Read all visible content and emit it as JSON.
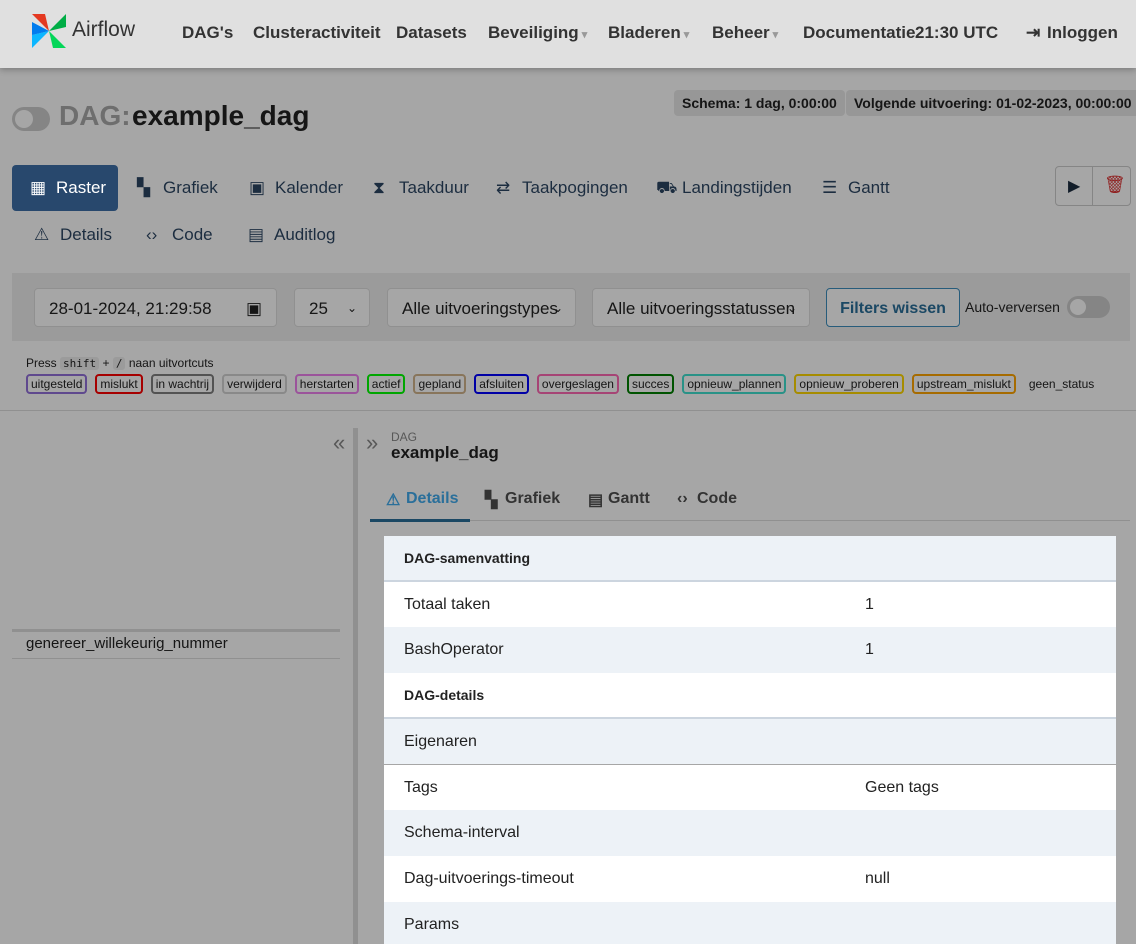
{
  "nav": {
    "brand": "Airflow",
    "items": [
      "DAG's",
      "Clusteractiviteit",
      "Datasets",
      "Beveiliging",
      "Bladeren",
      "Beheer",
      "Documentatie"
    ],
    "time": "21:30 UTC",
    "login": "Inloggen"
  },
  "header": {
    "prefix": "DAG:",
    "dag_id": "example_dag",
    "schedule": "Schema: 1 dag, 0:00:00",
    "next_run": "Volgende uitvoering: 01-02-2023, 00:00:00"
  },
  "tabs": [
    "Raster",
    "Grafiek",
    "Kalender",
    "Taakduur",
    "Taakpogingen",
    "Landingstijden",
    "Gantt",
    "Details",
    "Code",
    "Auditlog"
  ],
  "filters": {
    "date": "28-01-2024, 21:29:58",
    "count": "25",
    "run_type": "Alle uitvoeringstypes",
    "run_state": "Alle uitvoeringsstatussen",
    "clear": "Filters wissen",
    "auto_refresh": "Auto-verversen"
  },
  "shortcuts": {
    "press": "Press",
    "key1": "shift",
    "plus": "+",
    "key2": "/",
    "text": "naan uitvortcuts"
  },
  "states": [
    {
      "label": "uitgesteld",
      "color": "#9370db"
    },
    {
      "label": "mislukt",
      "color": "#ff0000"
    },
    {
      "label": "in wachtrij",
      "color": "#808080"
    },
    {
      "label": "verwijderd",
      "color": "#d3d3d3"
    },
    {
      "label": "herstarten",
      "color": "#ee82ee"
    },
    {
      "label": "actief",
      "color": "#00ff00"
    },
    {
      "label": "gepland",
      "color": "#d2b48c"
    },
    {
      "label": "afsluiten",
      "color": "#0000ff"
    },
    {
      "label": "overgeslagen",
      "color": "#ff69b4"
    },
    {
      "label": "succes",
      "color": "#008000"
    },
    {
      "label": "opnieuw_plannen",
      "color": "#40e0d0"
    },
    {
      "label": "opnieuw_proberen",
      "color": "#ffd700"
    },
    {
      "label": "upstream_mislukt",
      "color": "#ffa500"
    },
    {
      "label": "geen_status"
    }
  ],
  "task": "genereer_willekeurig_nummer",
  "panel": {
    "label": "DAG",
    "dag_id": "example_dag",
    "tabs": [
      "Details",
      "Grafiek",
      "Gantt",
      "Code"
    ],
    "sections": [
      {
        "title": "DAG-samenvatting",
        "rows": [
          [
            "Totaal taken",
            "1"
          ],
          [
            "BashOperator",
            "1"
          ]
        ]
      },
      {
        "title": "DAG-details",
        "rows": [
          [
            "Eigenaren"
          ],
          [
            "Tags",
            "Geen tags"
          ],
          [
            "Schema-interval"
          ],
          [
            "Dag-uitvoerings-timeout",
            "null"
          ],
          [
            "Params"
          ]
        ]
      }
    ]
  }
}
